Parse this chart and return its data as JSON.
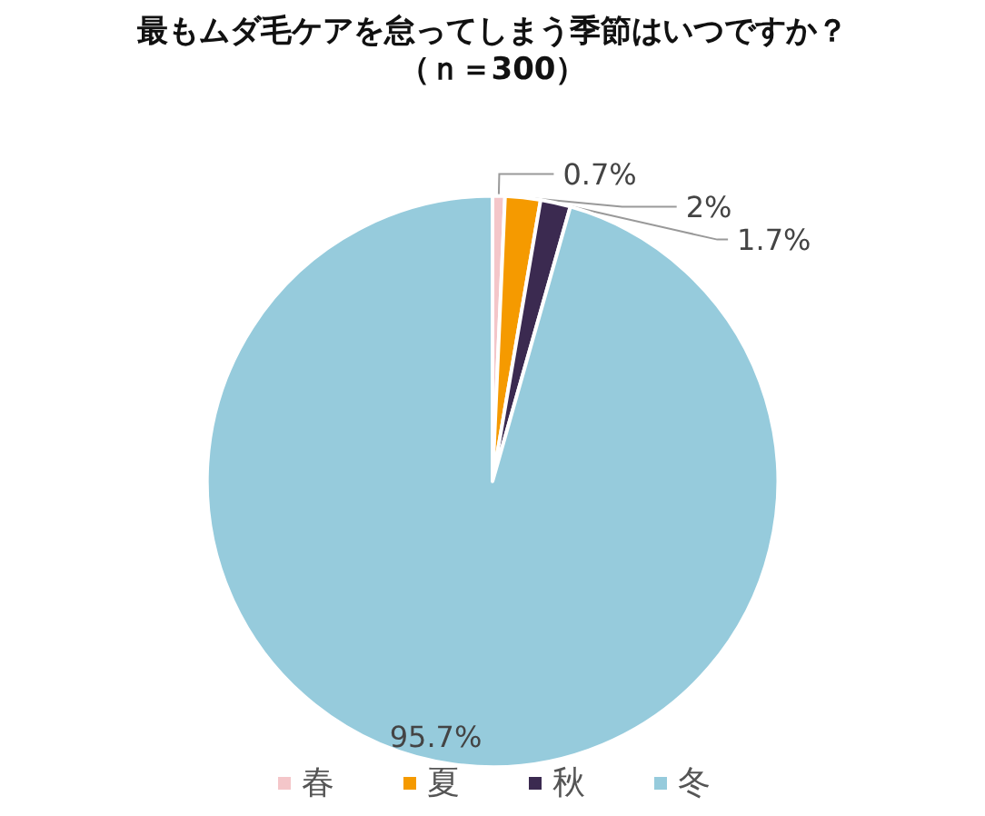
{
  "chart_data": {
    "type": "pie",
    "title": "最もムダ毛ケアを怠ってしまう季節はいつですか？",
    "subtitle": "（ｎ＝300）",
    "categories": [
      "春",
      "夏",
      "秋",
      "冬"
    ],
    "values": [
      0.7,
      2,
      1.7,
      95.7
    ],
    "colors": [
      "#f4c6c9",
      "#f59a00",
      "#3b2a50",
      "#96cbdc"
    ],
    "value_labels": [
      "0.7%",
      "2%",
      "1.7%",
      "95.7%"
    ],
    "legend": "bottom"
  }
}
